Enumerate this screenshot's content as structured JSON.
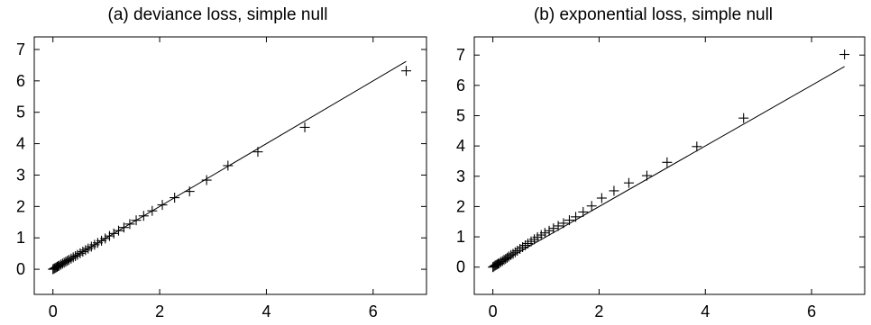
{
  "chart_data": [
    {
      "type": "scatter",
      "title": "(a)  deviance loss, simple null",
      "xlim": [
        -0.35,
        7.0
      ],
      "ylim": [
        -0.8,
        7.4
      ],
      "xticks": [
        0,
        2,
        4,
        6
      ],
      "xtick_labels": [
        "0",
        "2",
        "4",
        "6"
      ],
      "yticks": [
        0,
        1,
        2,
        3,
        4,
        5,
        6,
        7
      ],
      "ytick_labels": [
        "0",
        "1",
        "2",
        "3",
        "4",
        "5",
        "6",
        "7"
      ],
      "reference_line": {
        "x": [
          0,
          6.62
        ],
        "y": [
          0,
          6.62
        ]
      },
      "marker": "+",
      "series": [
        {
          "x": [
            0.0,
            0.02,
            0.04,
            0.06,
            0.08,
            0.1,
            0.12,
            0.15,
            0.18,
            0.21,
            0.24,
            0.27,
            0.3,
            0.34,
            0.38,
            0.42,
            0.46,
            0.51,
            0.56,
            0.61,
            0.66,
            0.72,
            0.78,
            0.84,
            0.91,
            0.98,
            1.06,
            1.14,
            1.23,
            1.33,
            1.44,
            1.56,
            1.7,
            1.86,
            2.05,
            2.28,
            2.56,
            2.88,
            3.28,
            3.84,
            4.72,
            6.62
          ],
          "y": [
            0.0,
            0.02,
            0.04,
            0.06,
            0.08,
            0.1,
            0.12,
            0.15,
            0.18,
            0.21,
            0.24,
            0.27,
            0.3,
            0.34,
            0.38,
            0.42,
            0.46,
            0.51,
            0.56,
            0.61,
            0.66,
            0.72,
            0.78,
            0.84,
            0.91,
            0.98,
            1.06,
            1.14,
            1.23,
            1.33,
            1.44,
            1.56,
            1.7,
            1.86,
            2.05,
            2.28,
            2.48,
            2.84,
            3.3,
            3.74,
            4.52,
            6.32
          ]
        }
      ]
    },
    {
      "type": "scatter",
      "title": "(b)  exponential loss, simple null",
      "xlim": [
        -0.35,
        7.0
      ],
      "ylim": [
        -0.9,
        7.6
      ],
      "xticks": [
        0,
        2,
        4,
        6
      ],
      "xtick_labels": [
        "0",
        "2",
        "4",
        "6"
      ],
      "yticks": [
        0,
        1,
        2,
        3,
        4,
        5,
        6,
        7
      ],
      "ytick_labels": [
        "0",
        "1",
        "2",
        "3",
        "4",
        "5",
        "6",
        "7"
      ],
      "reference_line": {
        "x": [
          0,
          6.62
        ],
        "y": [
          0,
          6.62
        ]
      },
      "marker": "+",
      "series": [
        {
          "x": [
            0.0,
            0.02,
            0.04,
            0.06,
            0.08,
            0.1,
            0.12,
            0.15,
            0.18,
            0.21,
            0.24,
            0.27,
            0.3,
            0.34,
            0.38,
            0.42,
            0.46,
            0.51,
            0.56,
            0.61,
            0.66,
            0.72,
            0.78,
            0.84,
            0.91,
            0.98,
            1.06,
            1.14,
            1.23,
            1.33,
            1.44,
            1.56,
            1.7,
            1.86,
            2.05,
            2.28,
            2.56,
            2.9,
            3.28,
            3.84,
            4.72,
            6.62
          ],
          "y": [
            0.0,
            0.02,
            0.05,
            0.07,
            0.09,
            0.11,
            0.13,
            0.17,
            0.2,
            0.24,
            0.27,
            0.31,
            0.35,
            0.4,
            0.44,
            0.49,
            0.54,
            0.6,
            0.66,
            0.72,
            0.78,
            0.85,
            0.92,
            0.99,
            1.06,
            1.13,
            1.2,
            1.28,
            1.36,
            1.45,
            1.55,
            1.66,
            1.82,
            2.02,
            2.28,
            2.52,
            2.78,
            3.02,
            3.46,
            3.98,
            4.92,
            7.02
          ]
        }
      ]
    }
  ]
}
